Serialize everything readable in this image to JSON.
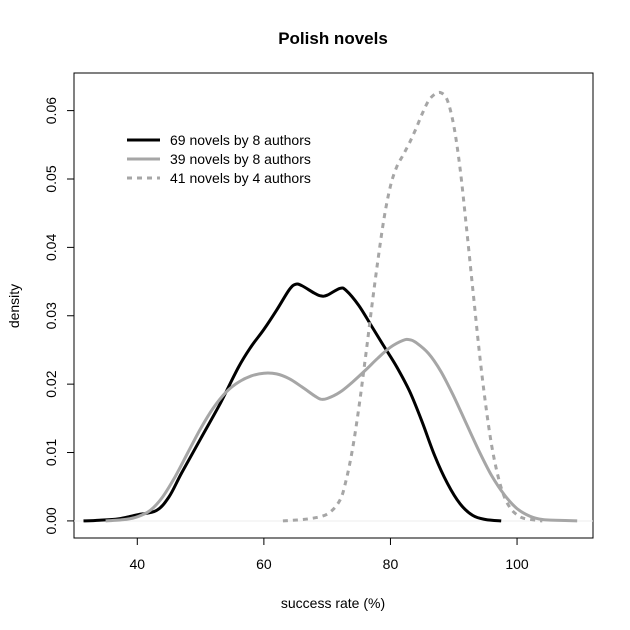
{
  "chart_data": {
    "type": "line",
    "title": "Polish novels",
    "xlabel": "success rate (%)",
    "ylabel": "density",
    "xlim": [
      30,
      112
    ],
    "ylim": [
      -0.0025,
      0.0655
    ],
    "x_ticks": [
      40,
      60,
      80,
      100
    ],
    "y_ticks": [
      0.0,
      0.01,
      0.02,
      0.03,
      0.04,
      0.05,
      0.06
    ],
    "y_tick_labels": [
      "0.00",
      "0.01",
      "0.02",
      "0.03",
      "0.04",
      "0.05",
      "0.06"
    ],
    "grid": false,
    "legend_position": "top-left",
    "series": [
      {
        "name": "69 novels by 8 authors",
        "color": "#000000",
        "style": "solid",
        "points": [
          [
            31.5,
            0.0
          ],
          [
            34,
            0.0001
          ],
          [
            37,
            0.0003
          ],
          [
            40,
            0.0009
          ],
          [
            43,
            0.0015
          ],
          [
            45,
            0.0035
          ],
          [
            47,
            0.007
          ],
          [
            50,
            0.012
          ],
          [
            53,
            0.017
          ],
          [
            56,
            0.0225
          ],
          [
            58,
            0.0255
          ],
          [
            60,
            0.028
          ],
          [
            62,
            0.0308
          ],
          [
            64,
            0.0338
          ],
          [
            65,
            0.0346
          ],
          [
            66,
            0.0344
          ],
          [
            68,
            0.0333
          ],
          [
            69,
            0.0329
          ],
          [
            70,
            0.033
          ],
          [
            72,
            0.034
          ],
          [
            73,
            0.0337
          ],
          [
            75,
            0.0315
          ],
          [
            77,
            0.0285
          ],
          [
            79,
            0.0255
          ],
          [
            81,
            0.0225
          ],
          [
            83,
            0.019
          ],
          [
            85,
            0.0145
          ],
          [
            87,
            0.0095
          ],
          [
            89,
            0.0055
          ],
          [
            91,
            0.0025
          ],
          [
            93,
            0.0008
          ],
          [
            95,
            0.0002
          ],
          [
            97.5,
            0.0
          ]
        ]
      },
      {
        "name": "39 novels by 8 authors",
        "color": "#a6a6a6",
        "style": "solid",
        "points": [
          [
            35,
            0.0
          ],
          [
            38,
            0.0002
          ],
          [
            40,
            0.0006
          ],
          [
            42,
            0.0015
          ],
          [
            44,
            0.0035
          ],
          [
            46,
            0.0065
          ],
          [
            48,
            0.01
          ],
          [
            50,
            0.0135
          ],
          [
            52,
            0.0165
          ],
          [
            54,
            0.0188
          ],
          [
            56,
            0.0203
          ],
          [
            58,
            0.0212
          ],
          [
            60,
            0.0216
          ],
          [
            62,
            0.0215
          ],
          [
            64,
            0.0208
          ],
          [
            66,
            0.0196
          ],
          [
            68,
            0.0183
          ],
          [
            69,
            0.0178
          ],
          [
            70,
            0.0179
          ],
          [
            72,
            0.0188
          ],
          [
            74,
            0.0203
          ],
          [
            76,
            0.022
          ],
          [
            78,
            0.0238
          ],
          [
            80,
            0.0254
          ],
          [
            82,
            0.0264
          ],
          [
            83,
            0.0265
          ],
          [
            84,
            0.0261
          ],
          [
            86,
            0.0245
          ],
          [
            88,
            0.0218
          ],
          [
            90,
            0.0182
          ],
          [
            92,
            0.0142
          ],
          [
            94,
            0.0102
          ],
          [
            96,
            0.0066
          ],
          [
            98,
            0.0038
          ],
          [
            100,
            0.0018
          ],
          [
            102,
            0.0007
          ],
          [
            104,
            0.0002
          ],
          [
            106,
            0.0001
          ],
          [
            109.5,
            0.0
          ]
        ]
      },
      {
        "name": "41 novels by 4 authors",
        "color": "#a6a6a6",
        "style": "dashed",
        "points": [
          [
            63,
            0.0
          ],
          [
            67,
            0.0003
          ],
          [
            70,
            0.001
          ],
          [
            72,
            0.003
          ],
          [
            73,
            0.006
          ],
          [
            74,
            0.0105
          ],
          [
            75,
            0.0165
          ],
          [
            76,
            0.0235
          ],
          [
            77,
            0.031
          ],
          [
            78,
            0.038
          ],
          [
            79,
            0.0443
          ],
          [
            80,
            0.049
          ],
          [
            81,
            0.0518
          ],
          [
            82,
            0.0535
          ],
          [
            83,
            0.0553
          ],
          [
            84,
            0.0573
          ],
          [
            85,
            0.0595
          ],
          [
            86,
            0.0614
          ],
          [
            87,
            0.0624
          ],
          [
            88,
            0.0626
          ],
          [
            89,
            0.0615
          ],
          [
            90,
            0.0578
          ],
          [
            91,
            0.0515
          ],
          [
            92,
            0.043
          ],
          [
            93,
            0.034
          ],
          [
            94,
            0.025
          ],
          [
            95,
            0.0173
          ],
          [
            96,
            0.011
          ],
          [
            97,
            0.0065
          ],
          [
            98,
            0.0035
          ],
          [
            99,
            0.0018
          ],
          [
            100,
            0.0009
          ],
          [
            101,
            0.0004
          ],
          [
            103,
            0.0001
          ],
          [
            104,
            0.0
          ]
        ]
      }
    ]
  }
}
